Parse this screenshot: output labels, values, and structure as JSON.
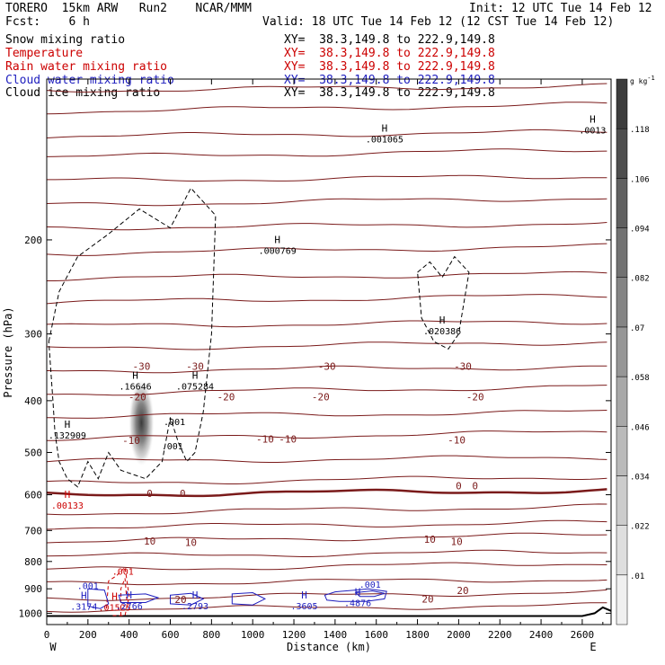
{
  "header": {
    "model": "TORERO  15km ARW   Run2    NCAR/MMM",
    "init": "Init: 12 UTC Tue 14 Feb 12",
    "fcst": "Fcst:    6 h",
    "valid": "Valid: 18 UTC Tue 14 Feb 12 (12 CST Tue 14 Feb 12)",
    "fields": [
      {
        "label": "Snow mixing ratio",
        "xy": "XY=  38.3,149.8 to 222.9,149.8",
        "color": "#000000"
      },
      {
        "label": "Temperature",
        "xy": "XY=  38.3,149.8 to 222.9,149.8",
        "color": "#cc0000"
      },
      {
        "label": "Rain water mixing ratio",
        "xy": "XY=  38.3,149.8 to 222.9,149.8",
        "color": "#cc0000"
      },
      {
        "label": "Cloud water mixing ratio",
        "xy": "XY=  38.3,149.8 to 222.9,149.8",
        "color": "#1e1ebe"
      },
      {
        "label": "Cloud ice mixing ratio",
        "xy": "XY=  38.3,149.8 to 222.9,149.8",
        "color": "#000000"
      }
    ]
  },
  "chart_data": {
    "type": "cross-section",
    "xlabel": "Distance (km)",
    "ylabel": "Pressure (hPa)",
    "x_ticks": [
      0,
      200,
      400,
      600,
      800,
      1000,
      1200,
      1400,
      1600,
      1800,
      2000,
      2200,
      2400,
      2600
    ],
    "y_ticks": [
      200,
      300,
      400,
      500,
      600,
      700,
      800,
      900,
      1000
    ],
    "xlim": [
      0,
      2740
    ],
    "ylim": [
      100,
      1050
    ],
    "y_scale": "log-pressure",
    "left_end_label": "W",
    "right_end_label": "E",
    "colorbar": {
      "unit": "g kg",
      "unit_exp": "-1",
      "ticks": [
        ".01",
        ".022",
        ".034",
        ".046",
        ".058",
        ".07",
        ".082",
        ".094",
        ".106",
        ".118"
      ]
    },
    "temperature_labels": [
      {
        "x": 460,
        "p": 345,
        "t": "-30"
      },
      {
        "x": 720,
        "p": 345,
        "t": "-30"
      },
      {
        "x": 1360,
        "p": 345,
        "t": "-30"
      },
      {
        "x": 2020,
        "p": 345,
        "t": "-30"
      },
      {
        "x": 440,
        "p": 393,
        "t": "-20"
      },
      {
        "x": 870,
        "p": 393,
        "t": "-20"
      },
      {
        "x": 1330,
        "p": 393,
        "t": "-20"
      },
      {
        "x": 2080,
        "p": 393,
        "t": "-20"
      },
      {
        "x": 410,
        "p": 475,
        "t": "-10"
      },
      {
        "x": 1060,
        "p": 472,
        "t": "-10"
      },
      {
        "x": 1170,
        "p": 472,
        "t": "-10"
      },
      {
        "x": 1990,
        "p": 474,
        "t": "-10"
      },
      {
        "x": 500,
        "p": 597,
        "t": "0"
      },
      {
        "x": 660,
        "p": 597,
        "t": "0"
      },
      {
        "x": 2000,
        "p": 577,
        "t": "0"
      },
      {
        "x": 2080,
        "p": 577,
        "t": "0"
      },
      {
        "x": 500,
        "p": 732,
        "t": "10"
      },
      {
        "x": 700,
        "p": 736,
        "t": "10"
      },
      {
        "x": 1860,
        "p": 727,
        "t": "10"
      },
      {
        "x": 1990,
        "p": 734,
        "t": "10"
      },
      {
        "x": 650,
        "p": 942,
        "t": "20"
      },
      {
        "x": 1850,
        "p": 940,
        "t": "20"
      },
      {
        "x": 2020,
        "p": 906,
        "t": "20"
      }
    ],
    "maxima": [
      {
        "x": 2650,
        "p": 122,
        "value": ".0013",
        "color": "#000000"
      },
      {
        "x": 1640,
        "p": 127,
        "value": ".001065",
        "color": "#000000"
      },
      {
        "x": 1120,
        "p": 205,
        "value": ".000769",
        "color": "#000000"
      },
      {
        "x": 1920,
        "p": 290,
        "value": ".020386",
        "color": "#000000"
      },
      {
        "x": 430,
        "p": 368,
        "value": ".16646",
        "color": "#000000"
      },
      {
        "x": 720,
        "p": 368,
        "value": ".075284",
        "color": "#000000"
      },
      {
        "x": 100,
        "p": 455,
        "value": ".132909",
        "color": "#000000"
      },
      {
        "x": 100,
        "p": 615,
        "value": ".00133",
        "color": "#cc0000"
      },
      {
        "x": 180,
        "p": 952,
        "value": ".3174",
        "color": "#1e1ebe"
      },
      {
        "x": 330,
        "p": 955,
        "value": ".01525",
        "color": "#cc0000"
      },
      {
        "x": 400,
        "p": 950,
        "value": ".2766",
        "color": "#1e1ebe"
      },
      {
        "x": 720,
        "p": 950,
        "value": ".2793",
        "color": "#1e1ebe"
      },
      {
        "x": 1250,
        "p": 950,
        "value": ".3605",
        "color": "#1e1ebe"
      },
      {
        "x": 1510,
        "p": 936,
        "value": ".4876",
        "color": "#1e1ebe"
      }
    ],
    "annotations": [
      {
        "x": 620,
        "p": 444,
        "t": ".001",
        "color": "#000000"
      },
      {
        "x": 610,
        "p": 493,
        "t": ".001",
        "color": "#000000"
      },
      {
        "x": 370,
        "p": 847,
        "t": ".001",
        "color": "#cc0000"
      },
      {
        "x": 200,
        "p": 901,
        "t": ".001",
        "color": "#1e1ebe"
      },
      {
        "x": 1570,
        "p": 896,
        "t": ".001",
        "color": "#1e1ebe"
      }
    ]
  }
}
